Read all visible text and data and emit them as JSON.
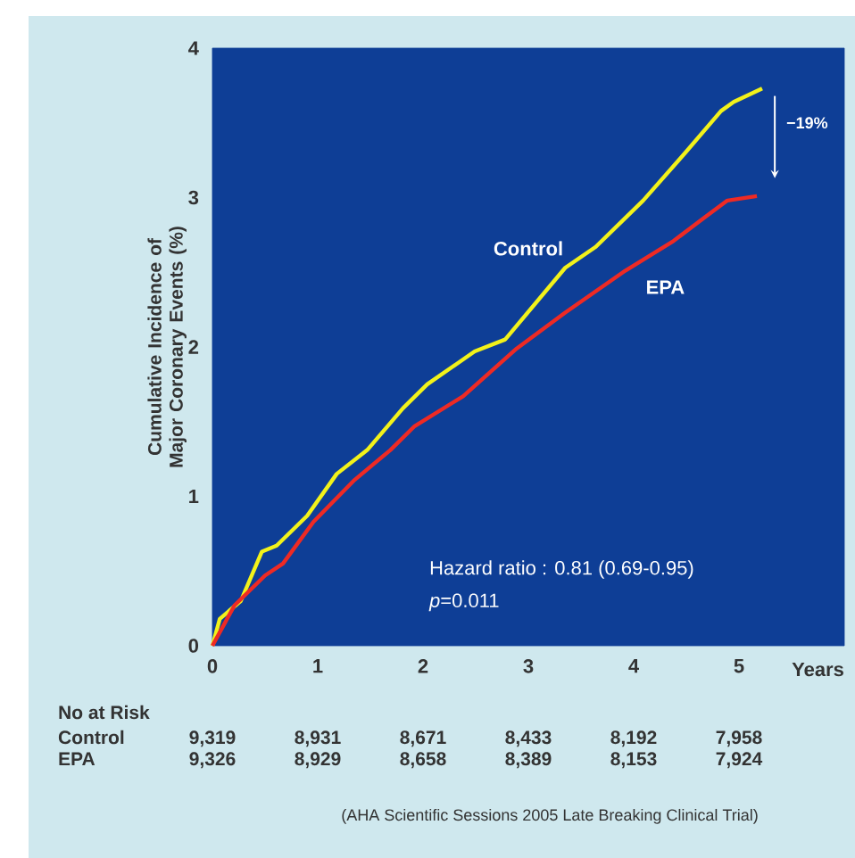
{
  "chart_data": {
    "type": "line",
    "xlabel": "Years",
    "ylabel": "Cumulative Incidence of Major Coronary Events (%)",
    "xlim": [
      0,
      6
    ],
    "xticks": [
      0,
      1,
      2,
      3,
      4,
      5
    ],
    "ylim": [
      0,
      4
    ],
    "yticks": [
      0,
      1,
      2,
      3,
      4
    ],
    "grid": false,
    "legend": false,
    "marker": "none",
    "line_style": "solid",
    "series": [
      {
        "name": "Control",
        "color": "#f2f21a",
        "x": [
          0,
          0.07,
          0.27,
          0.47,
          0.61,
          0.9,
          1.18,
          1.47,
          1.81,
          2.04,
          2.49,
          2.78,
          3.35,
          3.64,
          4.09,
          4.49,
          4.83,
          4.95,
          5.22
        ],
        "values": [
          0,
          0.18,
          0.3,
          0.63,
          0.67,
          0.87,
          1.15,
          1.31,
          1.59,
          1.75,
          1.97,
          2.05,
          2.53,
          2.67,
          2.98,
          3.3,
          3.58,
          3.64,
          3.73
        ]
      },
      {
        "name": "EPA",
        "color": "#ee2a24",
        "x": [
          0,
          0.21,
          0.5,
          0.67,
          0.96,
          1.35,
          1.69,
          1.92,
          2.38,
          2.89,
          3.35,
          3.92,
          4.38,
          4.66,
          4.89,
          5.17
        ],
        "values": [
          0,
          0.27,
          0.47,
          0.55,
          0.83,
          1.11,
          1.31,
          1.47,
          1.67,
          1.99,
          2.23,
          2.51,
          2.71,
          2.86,
          2.98,
          3.01
        ]
      }
    ],
    "annotations": [
      "Hazard ratio : 0.81 (0.69-0.95)",
      "*p*=0.011",
      "−19%",
      "No at Risk",
      "Control",
      "9,319",
      "8,931",
      "8,671",
      "8,433",
      "8,192",
      "7,958",
      "EPA",
      "9,326",
      "8,929",
      "8,658",
      "8,389",
      "8,153",
      "7,924",
      "(AHA Scientific Sessions 2005 Late Breaking Clinical Trial)"
    ]
  }
}
